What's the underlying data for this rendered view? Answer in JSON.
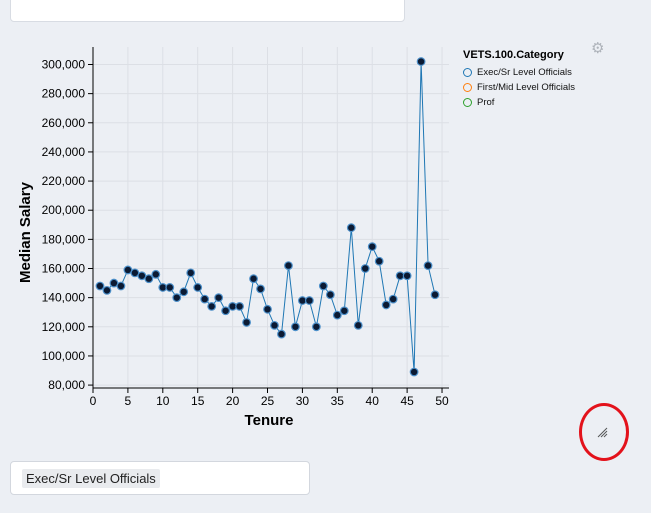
{
  "chart_data": {
    "type": "line",
    "xlabel": "Tenure",
    "ylabel": "Median Salary",
    "xlim": [
      0,
      51
    ],
    "ylim": [
      78000,
      312000
    ],
    "xticks": [
      0,
      5,
      10,
      15,
      20,
      25,
      30,
      35,
      40,
      45,
      50
    ],
    "yticks": [
      80000,
      100000,
      120000,
      140000,
      160000,
      180000,
      200000,
      220000,
      240000,
      260000,
      280000,
      300000
    ],
    "grid": true,
    "legend_position": "top-right",
    "legend_title": "VETS.100.Category",
    "legend": [
      {
        "label": "Exec/Sr Level Officials",
        "color": "#1f77b4"
      },
      {
        "label": "First/Mid Level Officials",
        "color": "#ff7f0e"
      },
      {
        "label": "Prof",
        "color": "#2ca02c"
      }
    ],
    "series": [
      {
        "name": "Exec/Sr Level Officials",
        "color": "#1f77b4",
        "x": [
          1,
          2,
          3,
          4,
          5,
          6,
          7,
          8,
          9,
          10,
          11,
          12,
          13,
          14,
          15,
          16,
          17,
          18,
          19,
          20,
          21,
          22,
          23,
          24,
          25,
          26,
          27,
          28,
          29,
          30,
          31,
          32,
          33,
          34,
          35,
          36,
          37,
          38,
          39,
          40,
          41,
          42,
          43,
          44,
          45,
          46,
          47,
          48,
          49
        ],
        "y": [
          148000,
          145000,
          150000,
          148000,
          159000,
          157000,
          155000,
          153000,
          156000,
          147000,
          147000,
          140000,
          144000,
          157000,
          147000,
          139000,
          134000,
          140000,
          131000,
          134000,
          134000,
          123000,
          153000,
          146000,
          132000,
          121000,
          115000,
          162000,
          120000,
          138000,
          138000,
          120000,
          148000,
          142000,
          128000,
          131000,
          188000,
          121000,
          160000,
          175000,
          165000,
          135000,
          139000,
          155000,
          155000,
          89000,
          302000,
          162000,
          142000
        ]
      }
    ]
  },
  "controls": {
    "category_selected": "Exec/Sr Level Officials"
  }
}
